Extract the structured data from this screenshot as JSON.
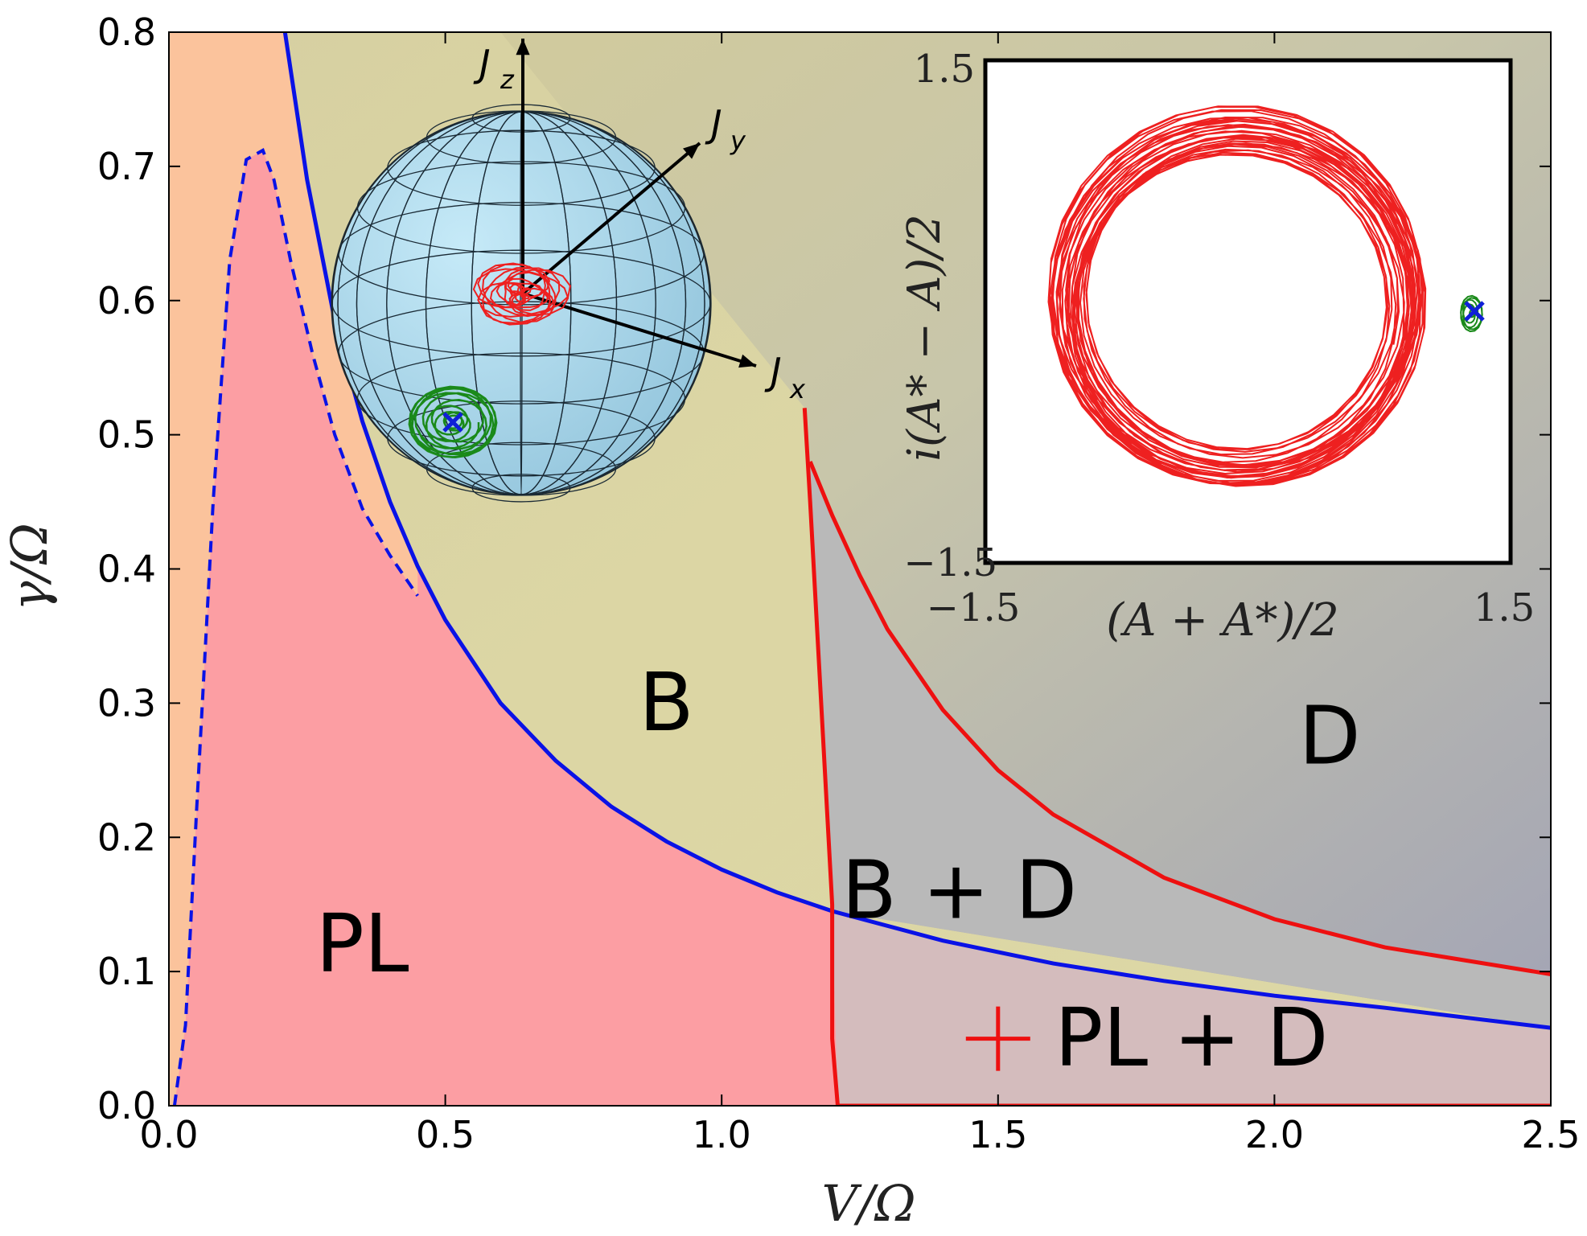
{
  "colors": {
    "region_PL": "#fc9ea3",
    "region_B": "#ece6a6",
    "region_D": "#a2a4b4",
    "region_BD": "#b9b9b9",
    "region_PLD": "#d4bcbd",
    "region_left": "#fbc39c",
    "boundary_blue": "#0a12e6",
    "boundary_red": "#ee1010",
    "sphere_fill": "#a8d6ea",
    "trajectory_red": "#ee2020",
    "trajectory_green": "#1a8a1a",
    "marker_blue": "#1020d8"
  },
  "chart_data": {
    "type": "phase-diagram",
    "xlabel": "V/Ω",
    "ylabel": "γ/Ω",
    "xlim": [
      0.0,
      2.5
    ],
    "ylim": [
      0.0,
      0.8
    ],
    "xticks": [
      0.0,
      0.5,
      1.0,
      1.5,
      2.0,
      2.5
    ],
    "yticks": [
      0.0,
      0.1,
      0.2,
      0.3,
      0.4,
      0.5,
      0.6,
      0.7,
      0.8
    ],
    "xtick_labels": [
      "0.0",
      "0.5",
      "1.0",
      "1.5",
      "2.0",
      "2.5"
    ],
    "ytick_labels": [
      "0.0",
      "0.1",
      "0.2",
      "0.3",
      "0.4",
      "0.5",
      "0.6",
      "0.7",
      "0.8"
    ],
    "regions": [
      {
        "label": "PL",
        "x": 0.35,
        "y": 0.1
      },
      {
        "label": "B",
        "x": 0.9,
        "y": 0.28
      },
      {
        "label": "D",
        "x": 2.1,
        "y": 0.255
      },
      {
        "label": "B + D",
        "x": 1.43,
        "y": 0.14
      },
      {
        "label": "PL + D",
        "x": 1.85,
        "y": 0.03
      }
    ],
    "series": [
      {
        "style": "solid-blue",
        "x": [
          0.21,
          0.25,
          0.3,
          0.35,
          0.4,
          0.45,
          0.5,
          0.6,
          0.7,
          0.8,
          0.9,
          1.0,
          1.1,
          1.2,
          1.4,
          1.6,
          1.8,
          2.0,
          2.2,
          2.5
        ],
        "y": [
          0.8,
          0.69,
          0.585,
          0.51,
          0.45,
          0.402,
          0.362,
          0.3,
          0.257,
          0.223,
          0.197,
          0.176,
          0.159,
          0.145,
          0.123,
          0.106,
          0.093,
          0.082,
          0.073,
          0.058
        ]
      },
      {
        "style": "dashed-blue",
        "x": [
          0.01,
          0.03,
          0.05,
          0.08,
          0.11,
          0.14,
          0.17,
          0.19,
          0.22,
          0.26,
          0.3,
          0.35,
          0.4,
          0.45
        ],
        "y": [
          0.0,
          0.06,
          0.22,
          0.45,
          0.63,
          0.705,
          0.712,
          0.69,
          0.63,
          0.56,
          0.5,
          0.445,
          0.41,
          0.38
        ]
      },
      {
        "style": "solid-red",
        "x": [
          1.15,
          1.16,
          1.18,
          1.2,
          1.2,
          1.21
        ],
        "y": [
          0.52,
          0.45,
          0.3,
          0.15,
          0.05,
          0.0
        ]
      },
      {
        "style": "solid-red",
        "x": [
          1.16,
          1.2,
          1.25,
          1.3,
          1.4,
          1.5,
          1.6,
          1.8,
          2.0,
          2.2,
          2.5
        ],
        "y": [
          0.48,
          0.44,
          0.395,
          0.355,
          0.295,
          0.25,
          0.217,
          0.17,
          0.139,
          0.118,
          0.098
        ]
      }
    ],
    "marker": {
      "symbol": "+",
      "x": 1.5,
      "y": 0.05
    }
  },
  "inset": {
    "ylabel": "i(A* − A)/2",
    "xlabel": "(A + A*)/2",
    "xtick_left": "−1.5",
    "xtick_right": "1.5",
    "ytick_top": "1.5",
    "ytick_bottom": "−1.5"
  },
  "bloch": {
    "axis_x": "J",
    "axis_x_sub": "x",
    "axis_y": "J",
    "axis_y_sub": "y",
    "axis_z": "J",
    "axis_z_sub": "z"
  }
}
